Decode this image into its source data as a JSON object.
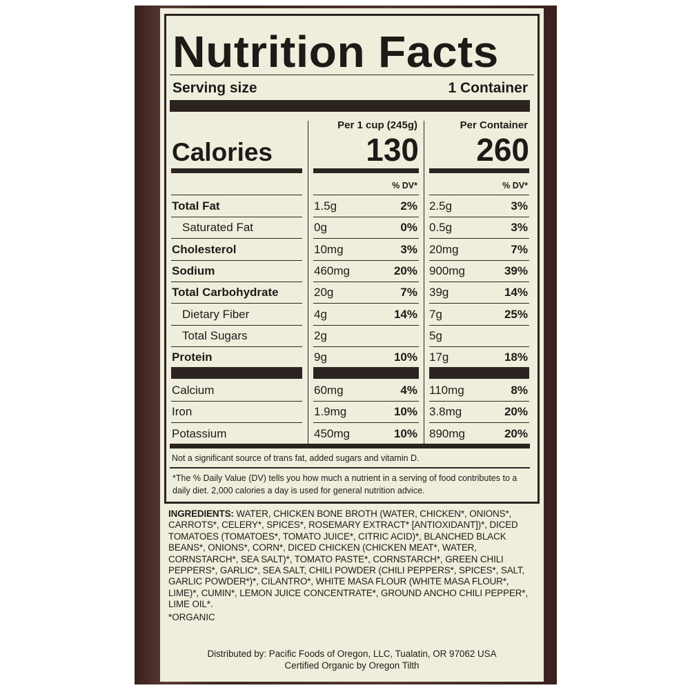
{
  "title": "Nutrition Facts",
  "serving": {
    "label": "Serving size",
    "value": "1 Container"
  },
  "columns": [
    {
      "header": "Per 1 cup (245g)",
      "calories": "130",
      "dv": "% DV*"
    },
    {
      "header": "Per Container",
      "calories": "260",
      "dv": "% DV*"
    }
  ],
  "calories_label": "Calories",
  "nutrients": [
    {
      "name": "Total Fat",
      "bold": true,
      "indent": false,
      "a": "1.5g",
      "adv": "2%",
      "b": "2.5g",
      "bdv": "3%"
    },
    {
      "name": "Saturated Fat",
      "bold": false,
      "indent": true,
      "a": "0g",
      "adv": "0%",
      "b": "0.5g",
      "bdv": "3%"
    },
    {
      "name": "Cholesterol",
      "bold": true,
      "indent": false,
      "a": "10mg",
      "adv": "3%",
      "b": "20mg",
      "bdv": "7%"
    },
    {
      "name": "Sodium",
      "bold": true,
      "indent": false,
      "a": "460mg",
      "adv": "20%",
      "b": "900mg",
      "bdv": "39%"
    },
    {
      "name": "Total Carbohydrate",
      "bold": true,
      "indent": false,
      "a": "20g",
      "adv": "7%",
      "b": "39g",
      "bdv": "14%"
    },
    {
      "name": "Dietary Fiber",
      "bold": false,
      "indent": true,
      "a": "4g",
      "adv": "14%",
      "b": "7g",
      "bdv": "25%"
    },
    {
      "name": "Total Sugars",
      "bold": false,
      "indent": true,
      "a": "2g",
      "adv": "",
      "b": "5g",
      "bdv": ""
    },
    {
      "name": "Protein",
      "bold": true,
      "indent": false,
      "a": "9g",
      "adv": "10%",
      "b": "17g",
      "bdv": "18%"
    }
  ],
  "minerals": [
    {
      "name": "Calcium",
      "a": "60mg",
      "adv": "4%",
      "b": "110mg",
      "bdv": "8%"
    },
    {
      "name": "Iron",
      "a": "1.9mg",
      "adv": "10%",
      "b": "3.8mg",
      "bdv": "20%"
    },
    {
      "name": "Potassium",
      "a": "450mg",
      "adv": "10%",
      "b": "890mg",
      "bdv": "20%"
    }
  ],
  "not_significant": "Not a significant source of trans fat, added sugars and vitamin D.",
  "footnote": "*The % Daily Value (DV) tells you how much a nutrient in a serving of food contributes to a daily diet. 2,000 calories a day is used for general nutrition advice.",
  "ingredients_label": "INGREDIENTS:",
  "ingredients": "WATER, CHICKEN BONE BROTH (WATER, CHICKEN*, ONIONS*, CARROTS*, CELERY*, SPICES*, ROSEMARY EXTRACT* [ANTIOXIDANT])*, DICED TOMATOES (TOMATOES*, TOMATO JUICE*, CITRIC ACID)*, BLANCHED BLACK BEANS*, ONIONS*, CORN*, DICED CHICKEN (CHICKEN MEAT*, WATER, CORNSTARCH*, SEA SALT)*, TOMATO PASTE*, CORNSTARCH*, GREEN CHILI PEPPERS*, GARLIC*, SEA SALT, CHILI POWDER (CHILI PEPPERS*, SPICES*, SALT, GARLIC POWDER*)*, CILANTRO*, WHITE MASA FLOUR (WHITE MASA FLOUR*, LIME)*, CUMIN*, LEMON JUICE CONCENTRATE*, GROUND ANCHO CHILI PEPPER*, LIME OIL*.",
  "organic_note": "*ORGANIC",
  "distributor": "Distributed by: Pacific Foods of Oregon, LLC, Tualatin, OR 97062 USA",
  "certification": "Certified Organic by Oregon Tilth"
}
